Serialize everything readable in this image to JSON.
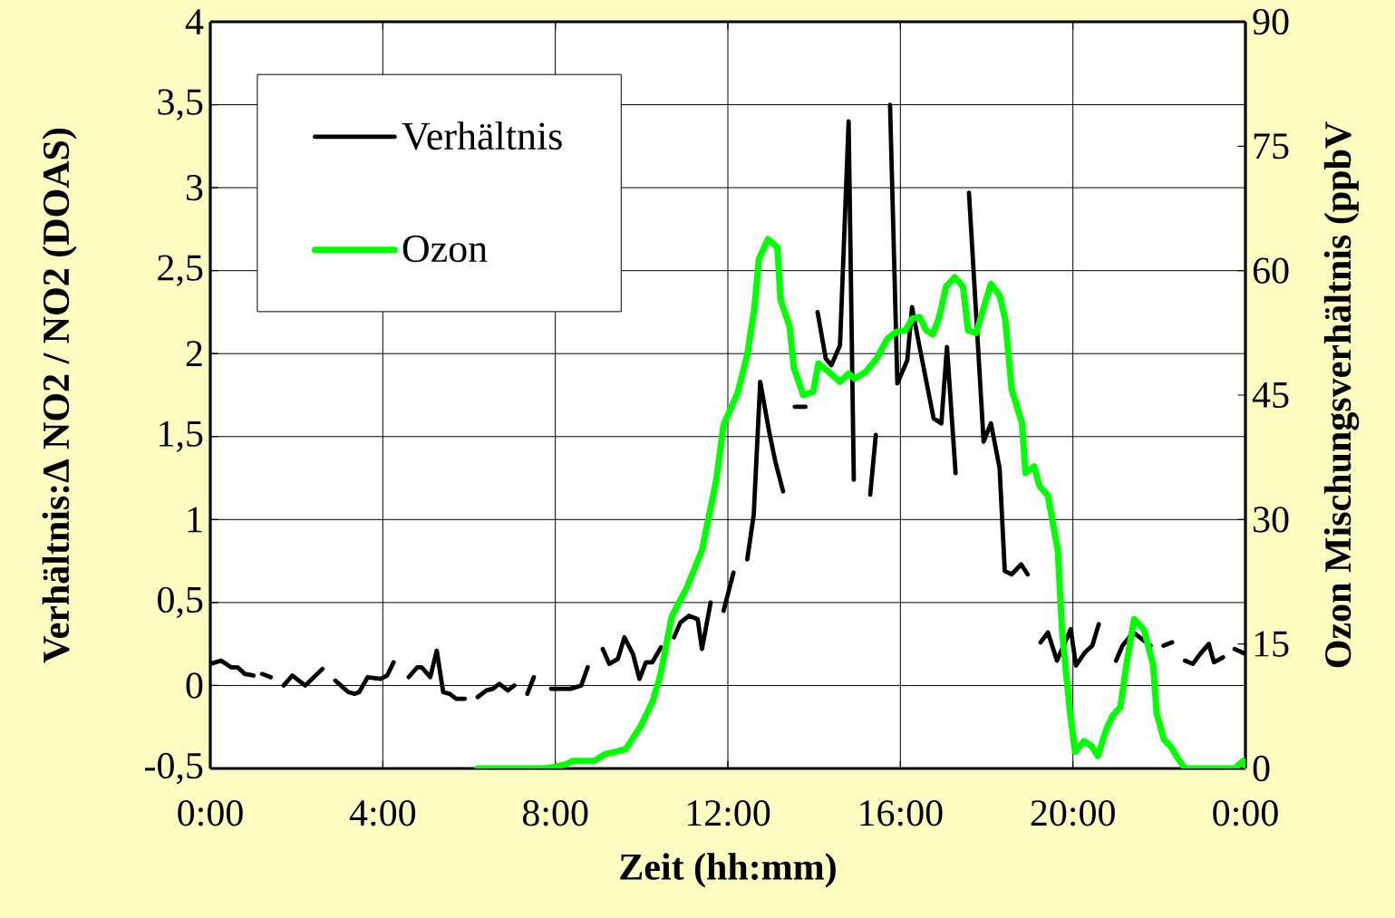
{
  "chart_data": {
    "type": "line",
    "xlabel": "Zeit (hh:mm)",
    "ylabel": "Verhältnis:Δ NO2 / NO2 (DOAS)",
    "y2label": "Ozon Mischungsverhältnis (ppbV",
    "xlim": [
      0,
      24
    ],
    "ylim": [
      -0.5,
      4
    ],
    "y2lim": [
      0,
      90
    ],
    "xticks": [
      {
        "value": 0,
        "label": "0:00"
      },
      {
        "value": 4,
        "label": "4:00"
      },
      {
        "value": 8,
        "label": "8:00"
      },
      {
        "value": 12,
        "label": "12:00"
      },
      {
        "value": 16,
        "label": "16:00"
      },
      {
        "value": 20,
        "label": "20:00"
      },
      {
        "value": 24,
        "label": "0:00"
      }
    ],
    "yticks": [
      {
        "value": -0.5,
        "label": "-0,5"
      },
      0,
      {
        "value": 0.5,
        "label": "0,5"
      },
      1,
      {
        "value": 1.5,
        "label": "1,5"
      },
      2,
      {
        "value": 2.5,
        "label": "2,5"
      },
      3,
      {
        "value": 3.5,
        "label": "3,5"
      },
      4
    ],
    "y2ticks": [
      0,
      15,
      30,
      45,
      60,
      75,
      90
    ],
    "grid": true,
    "legend": "top left",
    "series": [
      {
        "name": "Verhältnis",
        "color": "#000000",
        "x": [
          0,
          0.25,
          0.48,
          0.63,
          0.8,
          1.0,
          1.1,
          1.2,
          1.4,
          1.55,
          1.7,
          1.9,
          2.2,
          2.6,
          2.75,
          2.9,
          3.2,
          3.35,
          3.45,
          3.65,
          3.95,
          4.1,
          4.25,
          4.42,
          4.6,
          4.8,
          4.9,
          5.1,
          5.25,
          5.4,
          5.55,
          5.7,
          5.9,
          6.05,
          6.2,
          6.4,
          6.55,
          6.7,
          6.9,
          7.05,
          7.2,
          7.35,
          7.5,
          7.7,
          7.9,
          8.35,
          8.6,
          8.75,
          8.92,
          9.1,
          9.25,
          9.45,
          9.6,
          9.8,
          9.95,
          10.1,
          10.25,
          10.45,
          10.6,
          10.75,
          10.9,
          11.1,
          11.3,
          11.4,
          11.6,
          11.75,
          11.9,
          12.13,
          12.3,
          12.45,
          12.6,
          12.75,
          12.95,
          13.1,
          13.28,
          13.4,
          13.55,
          13.8,
          13.95,
          14.08,
          14.27,
          14.4,
          14.6,
          14.8,
          14.92,
          15.1,
          15.3,
          15.43,
          15.6,
          15.76,
          15.93,
          16.16,
          16.27,
          16.4,
          16.77,
          16.95,
          17.08,
          17.28,
          17.45,
          17.59,
          17.93,
          18.1,
          18.3,
          18.42,
          18.58,
          18.8,
          18.95,
          19.1,
          19.25,
          19.42,
          19.63,
          19.95,
          20.07,
          20.28,
          20.45,
          20.6,
          20.8,
          21.0,
          21.15,
          21.4,
          21.8,
          21.95,
          22.1,
          22.3,
          22.45,
          22.6,
          22.78,
          22.95,
          23.15,
          23.27,
          23.48,
          23.6,
          23.75,
          24.0
        ],
        "values": [
          0.13,
          0.15,
          0.11,
          0.11,
          0.07,
          0.06,
          null,
          0.07,
          0.05,
          null,
          0.0,
          0.06,
          0.0,
          0.1,
          null,
          0.03,
          -0.04,
          -0.05,
          -0.04,
          0.05,
          0.04,
          0.06,
          0.14,
          null,
          0.05,
          0.11,
          0.11,
          0.05,
          0.21,
          -0.04,
          -0.05,
          -0.08,
          -0.08,
          null,
          -0.07,
          -0.03,
          -0.02,
          0.01,
          -0.03,
          0.0,
          null,
          -0.05,
          0.05,
          null,
          -0.02,
          -0.02,
          0.0,
          0.11,
          null,
          0.22,
          0.13,
          0.16,
          0.29,
          0.19,
          0.04,
          0.14,
          0.14,
          0.23,
          null,
          0.29,
          0.38,
          0.42,
          0.4,
          0.22,
          0.5,
          null,
          0.45,
          0.68,
          null,
          0.76,
          1.03,
          1.83,
          1.54,
          1.35,
          1.17,
          null,
          1.68,
          1.68,
          null,
          2.25,
          1.97,
          1.93,
          2.05,
          3.4,
          1.24,
          null,
          1.15,
          1.51,
          null,
          3.5,
          1.82,
          1.96,
          2.28,
          2.1,
          1.61,
          1.58,
          2.04,
          1.28,
          null,
          2.97,
          1.47,
          1.58,
          1.31,
          0.69,
          0.67,
          0.73,
          0.67,
          null,
          0.26,
          0.32,
          0.15,
          0.34,
          0.12,
          0.2,
          0.24,
          0.37,
          null,
          0.15,
          0.24,
          0.32,
          0.24,
          null,
          0.24,
          0.26,
          null,
          0.15,
          0.13,
          0.19,
          0.25,
          0.14,
          0.17,
          null,
          0.22,
          0.19
        ]
      },
      {
        "name": "Ozon",
        "color": "#00ff00",
        "axis": "y2",
        "x": [
          6.2,
          7.73,
          8.0,
          8.25,
          8.4,
          8.9,
          9.15,
          9.4,
          9.63,
          9.98,
          10.25,
          10.43,
          10.7,
          11.05,
          11.4,
          11.73,
          11.9,
          12.23,
          12.45,
          12.61,
          12.72,
          12.93,
          13.15,
          13.22,
          13.43,
          13.53,
          13.75,
          13.98,
          14.1,
          14.34,
          14.6,
          14.8,
          14.94,
          15.2,
          15.45,
          15.7,
          15.9,
          16.12,
          16.27,
          16.45,
          16.6,
          16.75,
          16.9,
          17.06,
          17.26,
          17.45,
          17.57,
          17.76,
          17.93,
          18.1,
          18.3,
          18.43,
          18.58,
          18.82,
          18.9,
          19.1,
          19.23,
          19.42,
          19.65,
          19.75,
          19.92,
          20.05,
          20.26,
          20.43,
          20.58,
          20.78,
          20.93,
          21.1,
          21.25,
          21.42,
          21.65,
          21.86,
          21.94,
          22.11,
          22.26,
          22.45,
          22.6,
          23.75,
          23.95,
          24.0
        ],
        "values": [
          0,
          0,
          0.2,
          0.5,
          0.9,
          0.9,
          1.7,
          2.0,
          2.3,
          5.1,
          8.0,
          11.1,
          18.3,
          21.8,
          26.3,
          34.7,
          41.4,
          45.3,
          49.9,
          55.2,
          61.4,
          63.8,
          62.8,
          56.5,
          53.3,
          48.3,
          45.0,
          45.4,
          48.8,
          47.8,
          46.6,
          47.6,
          47.0,
          47.8,
          49.4,
          51.8,
          52.6,
          52.8,
          54.2,
          54.4,
          52.8,
          52.3,
          54.4,
          58.1,
          59.2,
          58.1,
          52.8,
          52.5,
          55.5,
          58.4,
          57.0,
          54.2,
          45.7,
          41.6,
          35.6,
          36.4,
          34.0,
          32.9,
          26.3,
          16.5,
          7.4,
          2.0,
          3.3,
          2.7,
          1.5,
          4.8,
          6.4,
          7.4,
          12.8,
          18.0,
          16.7,
          12.5,
          6.7,
          3.5,
          2.7,
          1.1,
          0,
          0,
          0.9,
          0.3
        ]
      }
    ]
  }
}
